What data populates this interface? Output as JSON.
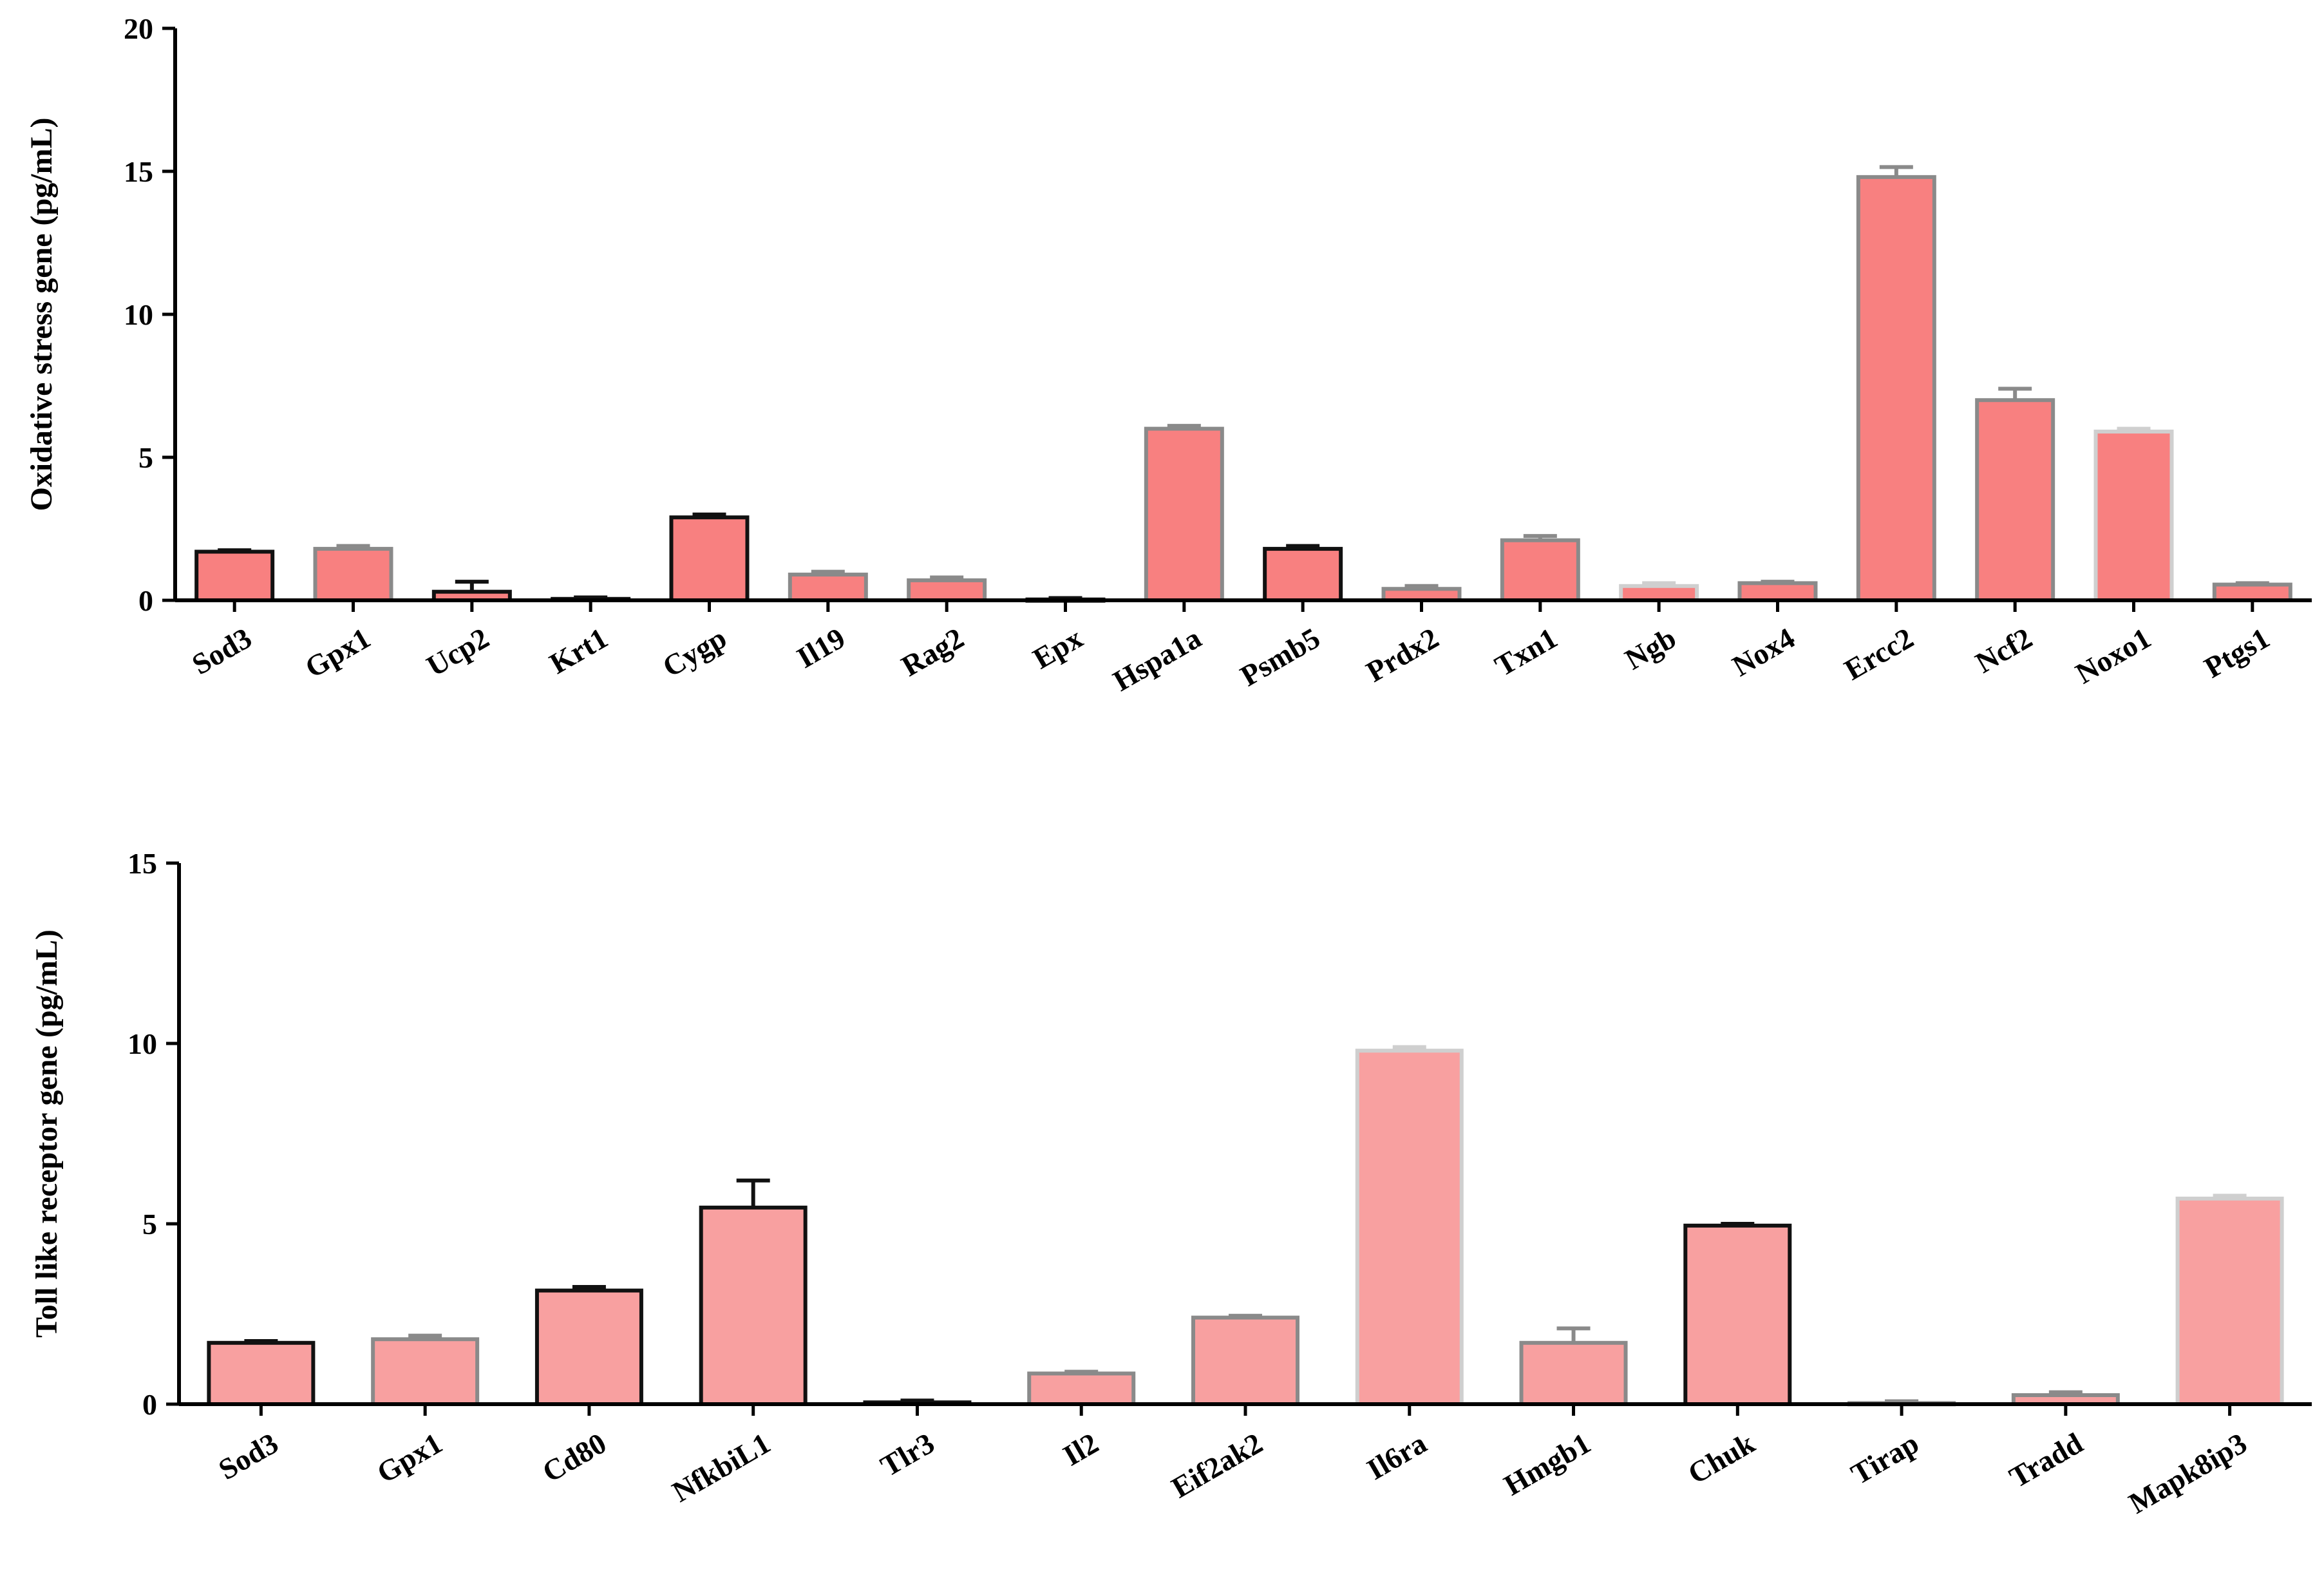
{
  "colors": {
    "bar_fill_top": "#f88080",
    "bar_fill_bottom": "#f8a0a0",
    "outline_dark": "#111111",
    "outline_gray": "#8a8a8a",
    "outline_light": "#cfcfcf",
    "axis": "#000000"
  },
  "chart_data": [
    {
      "type": "bar",
      "title": "",
      "xlabel": "",
      "ylabel": "Oxidative stress gene (pg/mL)",
      "ylim": [
        0,
        20
      ],
      "yticks": [
        "0",
        "5",
        "10",
        "15",
        "20"
      ],
      "grid": false,
      "categories": [
        "Sod3",
        "Gpx1",
        "Ucp2",
        "Krt1",
        "Cygp",
        "Il19",
        "Rag2",
        "Epx",
        "Hspa1a",
        "Psmb5",
        "Prdx2",
        "Txn1",
        "Ngb",
        "Nox4",
        "Ercc2",
        "Ncf2",
        "Noxo1",
        "Ptgs1"
      ],
      "series": [
        {
          "values": [
            1.7,
            1.8,
            0.3,
            0.05,
            2.9,
            0.9,
            0.7,
            0.03,
            6.0,
            1.8,
            0.4,
            2.1,
            0.5,
            0.6,
            14.8,
            7.0,
            5.9,
            0.55
          ],
          "errors": [
            0.05,
            0.1,
            0.35,
            0.05,
            0.1,
            0.1,
            0.1,
            0.05,
            0.1,
            0.1,
            0.1,
            0.15,
            0.1,
            0.05,
            0.35,
            0.4,
            0.1,
            0.05
          ],
          "outline": [
            "dark",
            "gray",
            "dark",
            "dark",
            "dark",
            "gray",
            "gray",
            "dark",
            "gray",
            "dark",
            "gray",
            "gray",
            "light",
            "gray",
            "gray",
            "gray",
            "light",
            "gray"
          ]
        }
      ]
    },
    {
      "type": "bar",
      "title": "",
      "xlabel": "",
      "ylabel": "Toll like receptor gene (pg/mL)",
      "ylim": [
        0,
        15
      ],
      "yticks": [
        "0",
        "5",
        "10",
        "15"
      ],
      "grid": false,
      "categories": [
        "Sod3",
        "Gpx1",
        "Cd80",
        "NfkbiL1",
        "Tlr3",
        "Il2",
        "Eif2ak2",
        "Il6ra",
        "Hmgb1",
        "Chuk",
        "Tirap",
        "Tradd",
        "Mapk8ip3"
      ],
      "series": [
        {
          "values": [
            1.7,
            1.8,
            3.15,
            5.45,
            0.05,
            0.85,
            2.4,
            9.8,
            1.7,
            4.95,
            0.03,
            0.25,
            5.7
          ],
          "errors": [
            0.05,
            0.1,
            0.1,
            0.75,
            0.05,
            0.05,
            0.05,
            0.1,
            0.4,
            0.05,
            0.05,
            0.08,
            0.08
          ],
          "outline": [
            "dark",
            "gray",
            "dark",
            "dark",
            "dark",
            "gray",
            "gray",
            "light",
            "gray",
            "dark",
            "gray",
            "gray",
            "light"
          ]
        }
      ]
    }
  ]
}
